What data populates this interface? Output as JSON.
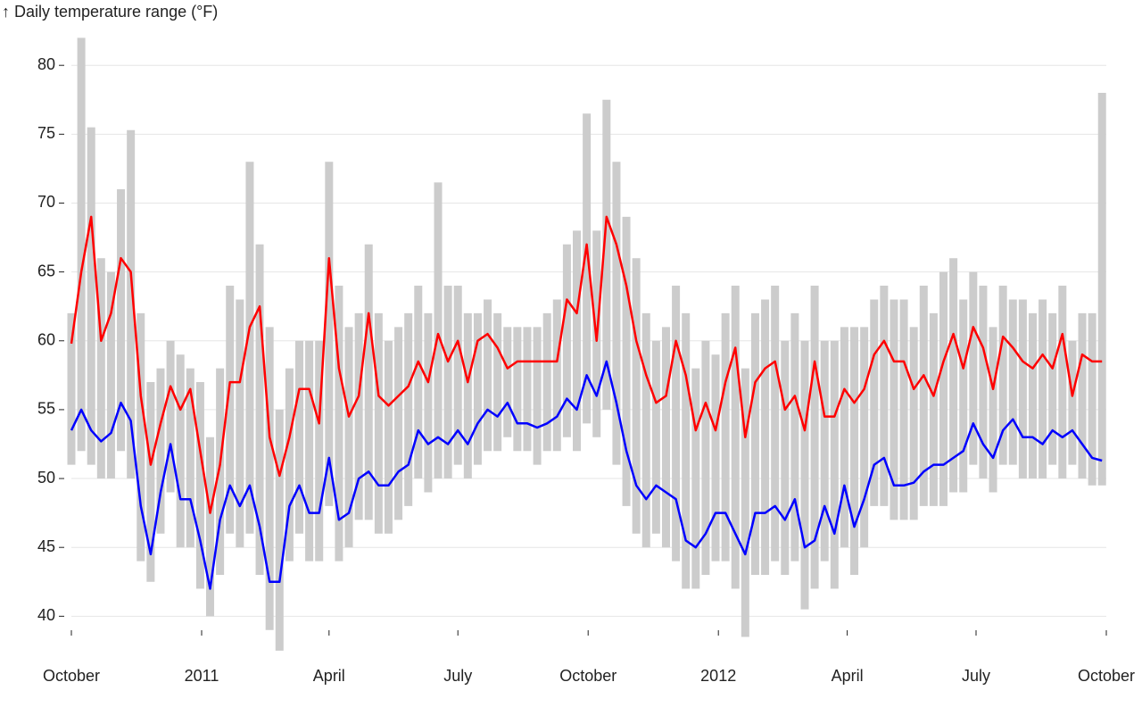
{
  "chart_data": {
    "type": "line",
    "y_label": "↑ Daily temperature range (°F)",
    "x": [
      "2010-10-01",
      "2010-10-08",
      "2010-10-15",
      "2010-10-22",
      "2010-10-29",
      "2010-11-05",
      "2010-11-12",
      "2010-11-19",
      "2010-11-26",
      "2010-12-03",
      "2010-12-10",
      "2010-12-17",
      "2010-12-24",
      "2010-12-31",
      "2011-01-07",
      "2011-01-14",
      "2011-01-21",
      "2011-01-28",
      "2011-02-04",
      "2011-02-11",
      "2011-02-18",
      "2011-02-25",
      "2011-03-04",
      "2011-03-11",
      "2011-03-18",
      "2011-03-25",
      "2011-04-01",
      "2011-04-08",
      "2011-04-15",
      "2011-04-22",
      "2011-04-29",
      "2011-05-06",
      "2011-05-13",
      "2011-05-20",
      "2011-05-27",
      "2011-06-03",
      "2011-06-10",
      "2011-06-17",
      "2011-06-24",
      "2011-07-01",
      "2011-07-08",
      "2011-07-15",
      "2011-07-22",
      "2011-07-29",
      "2011-08-05",
      "2011-08-12",
      "2011-08-19",
      "2011-08-26",
      "2011-09-02",
      "2011-09-09",
      "2011-09-16",
      "2011-09-23",
      "2011-09-30",
      "2011-10-07",
      "2011-10-14",
      "2011-10-21",
      "2011-10-28",
      "2011-11-04",
      "2011-11-11",
      "2011-11-18",
      "2011-11-25",
      "2011-12-02",
      "2011-12-09",
      "2011-12-16",
      "2011-12-23",
      "2011-12-30",
      "2012-01-06",
      "2012-01-13",
      "2012-01-20",
      "2012-01-27",
      "2012-02-03",
      "2012-02-10",
      "2012-02-17",
      "2012-02-24",
      "2012-03-02",
      "2012-03-09",
      "2012-03-16",
      "2012-03-23",
      "2012-03-30",
      "2012-04-06",
      "2012-04-13",
      "2012-04-20",
      "2012-04-27",
      "2012-05-04",
      "2012-05-11",
      "2012-05-18",
      "2012-05-25",
      "2012-06-01",
      "2012-06-08",
      "2012-06-15",
      "2012-06-22",
      "2012-06-29",
      "2012-07-06",
      "2012-07-13",
      "2012-07-20",
      "2012-07-27",
      "2012-08-03",
      "2012-08-10",
      "2012-08-17",
      "2012-08-24",
      "2012-08-31",
      "2012-09-07",
      "2012-09-14",
      "2012-09-21",
      "2012-09-28"
    ],
    "range": {
      "color": "#cccccc",
      "low": [
        51,
        52,
        51,
        50,
        50,
        52,
        50,
        44,
        42.5,
        46,
        49,
        45,
        45,
        42,
        40,
        43,
        46,
        45,
        46,
        43,
        39,
        37.5,
        44,
        46,
        44,
        44,
        48,
        44,
        45,
        47,
        47,
        46,
        46,
        47,
        48,
        50,
        49,
        50,
        50,
        51,
        50,
        51,
        52,
        52,
        53,
        52,
        52,
        51,
        52,
        52,
        53,
        52,
        54,
        53,
        55,
        51,
        48,
        46,
        45,
        46,
        45,
        44,
        42,
        42,
        43,
        44,
        44,
        42,
        38.5,
        43,
        43,
        44,
        43,
        44,
        40.5,
        42,
        44,
        42,
        45,
        43,
        45,
        48,
        48,
        47,
        47,
        47,
        48,
        48,
        48,
        49,
        49,
        51,
        50,
        49,
        51,
        51,
        50,
        50,
        50,
        51,
        50,
        51,
        50,
        49.5,
        49.5
      ],
      "high": [
        62,
        82,
        75.5,
        66,
        65,
        71,
        75.3,
        62,
        57,
        58,
        60,
        59,
        58,
        57,
        53,
        58,
        64,
        63,
        73,
        67,
        61,
        55,
        58,
        60,
        60,
        60,
        73,
        64,
        61,
        62,
        67,
        62,
        60,
        61,
        62,
        64,
        62,
        71.5,
        64,
        64,
        62,
        62,
        63,
        62,
        61,
        61,
        61,
        61,
        62,
        63,
        67,
        68,
        76.5,
        68,
        77.5,
        73,
        69,
        66,
        62,
        60,
        61,
        64,
        62,
        58,
        60,
        59,
        62,
        64,
        58,
        62,
        63,
        64,
        60,
        62,
        60,
        64,
        60,
        60,
        61,
        61,
        61,
        63,
        64,
        63,
        63,
        61,
        64,
        62,
        65,
        66,
        63,
        65,
        64,
        61,
        64,
        63,
        63,
        62,
        63,
        62,
        64,
        60,
        62,
        62,
        78
      ]
    },
    "series": [
      {
        "color": "#ff0000",
        "values": [
          59.8,
          65,
          69,
          60,
          62,
          66,
          65,
          56,
          51,
          54,
          56.7,
          55,
          56.5,
          52,
          47.5,
          51,
          57,
          57,
          61,
          62.5,
          53,
          50.2,
          53,
          56.5,
          56.5,
          54,
          66,
          58,
          54.5,
          56,
          62,
          56,
          55.3,
          56,
          56.7,
          58.5,
          57,
          60.5,
          58.5,
          60,
          57,
          60,
          60.5,
          59.5,
          58,
          58.5,
          58.5,
          58.5,
          58.5,
          58.5,
          63,
          62,
          67,
          60,
          69,
          67,
          64,
          60,
          57.5,
          55.5,
          56,
          60,
          57.5,
          53.5,
          55.5,
          53.5,
          57,
          59.5,
          53,
          57,
          58,
          58.5,
          55,
          56,
          53.5,
          58.5,
          54.5,
          54.5,
          56.5,
          55.5,
          56.5,
          59,
          60,
          58.5,
          58.5,
          56.5,
          57.5,
          56,
          58.5,
          60.5,
          58,
          61,
          59.5,
          56.5,
          60.3,
          59.5,
          58.5,
          58,
          59,
          58,
          60.5,
          56,
          59,
          58.5,
          58.5
        ]
      },
      {
        "color": "#0000ff",
        "values": [
          53.5,
          55,
          53.5,
          52.7,
          53.3,
          55.5,
          54.2,
          48,
          44.5,
          49,
          52.5,
          48.5,
          48.5,
          45.5,
          42,
          47,
          49.5,
          48,
          49.5,
          46.5,
          42.5,
          42.5,
          48,
          49.5,
          47.5,
          47.5,
          51.5,
          47,
          47.5,
          50,
          50.5,
          49.5,
          49.5,
          50.5,
          51,
          53.5,
          52.5,
          53,
          52.5,
          53.5,
          52.5,
          54,
          55,
          54.5,
          55.5,
          54,
          54,
          53.7,
          54,
          54.5,
          55.8,
          55,
          57.5,
          56,
          58.5,
          55.5,
          52,
          49.5,
          48.5,
          49.5,
          49,
          48.5,
          45.5,
          45,
          46,
          47.5,
          47.5,
          46,
          44.5,
          47.5,
          47.5,
          48,
          47,
          48.5,
          45,
          45.5,
          48,
          46,
          49.5,
          46.5,
          48.5,
          51,
          51.5,
          49.5,
          49.5,
          49.7,
          50.5,
          51,
          51,
          51.5,
          52,
          54,
          52.5,
          51.5,
          53.5,
          54.3,
          53,
          53,
          52.5,
          53.5,
          53,
          53.5,
          52.5,
          51.5,
          51.3
        ]
      }
    ],
    "xlim": [
      "2010-10-01",
      "2012-10-01"
    ],
    "xticks": [
      {
        "value": "2010-10-01",
        "label": "October"
      },
      {
        "value": "2011-01-01",
        "label": "2011"
      },
      {
        "value": "2011-04-01",
        "label": "April"
      },
      {
        "value": "2011-07-01",
        "label": "July"
      },
      {
        "value": "2011-10-01",
        "label": "October"
      },
      {
        "value": "2012-01-01",
        "label": "2012"
      },
      {
        "value": "2012-04-01",
        "label": "April"
      },
      {
        "value": "2012-07-01",
        "label": "July"
      },
      {
        "value": "2012-10-01",
        "label": "October"
      }
    ],
    "ylim": [
      37.3,
      82.8
    ],
    "yticks": [
      40,
      45,
      50,
      55,
      60,
      65,
      70,
      75,
      80
    ],
    "grid": true
  }
}
